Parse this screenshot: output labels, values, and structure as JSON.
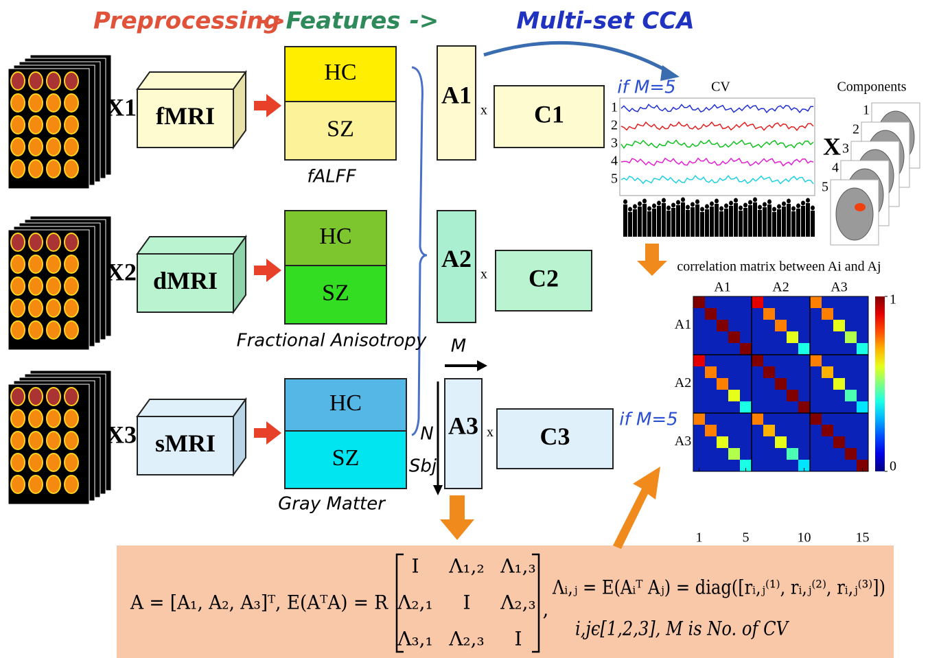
{
  "header": {
    "steps": [
      "Preprocessing",
      "Features",
      "Multi-set CCA"
    ],
    "arrows": [
      "->",
      "->"
    ]
  },
  "modalities": [
    {
      "input": "X1",
      "name": "fMRI",
      "groups": [
        "HC",
        "SZ"
      ],
      "caption": "fALFF",
      "loading": "A1",
      "times": "x",
      "component": "C1"
    },
    {
      "input": "X2",
      "name": "dMRI",
      "groups": [
        "HC",
        "SZ"
      ],
      "caption": "Fractional Anisotropy",
      "loading": "A2",
      "times": "x",
      "component": "C2"
    },
    {
      "input": "X3",
      "name": "sMRI",
      "groups": [
        "HC",
        "SZ"
      ],
      "caption": "Gray Matter",
      "loading": "A3",
      "times": "x",
      "component": "C3"
    }
  ],
  "loading_axes": {
    "columns": "M",
    "rows": [
      "N",
      "Sbj"
    ]
  },
  "cv_panel": {
    "condition": "if M=5",
    "title": "CV",
    "series_labels": [
      "1",
      "2",
      "3",
      "4",
      "5"
    ],
    "times": "X",
    "components_title": "Components",
    "component_labels": [
      "1",
      "2",
      "3",
      "4",
      "5"
    ]
  },
  "correlation_matrix": {
    "title": "correlation matrix between Ai and Aj",
    "condition": "if M=5",
    "column_labels": [
      "A1",
      "A2",
      "A3"
    ],
    "row_labels": [
      "A1",
      "A2",
      "A3"
    ],
    "xticks": [
      1,
      5,
      10,
      15
    ],
    "colorbar_ticks": [
      0,
      1
    ],
    "block_diagonals": [
      {
        "block": [
          0,
          0
        ],
        "values": [
          1,
          1,
          1,
          1,
          1
        ]
      },
      {
        "block": [
          1,
          1
        ],
        "values": [
          1,
          1,
          1,
          1,
          1
        ]
      },
      {
        "block": [
          2,
          2
        ],
        "values": [
          1,
          1,
          1,
          1,
          1
        ]
      },
      {
        "block": [
          0,
          1
        ],
        "values": [
          0.9,
          0.75,
          0.75,
          0.6,
          0.4
        ]
      },
      {
        "block": [
          0,
          2
        ],
        "values": [
          0.75,
          0.75,
          0.6,
          0.55,
          0.4
        ]
      },
      {
        "block": [
          1,
          2
        ],
        "values": [
          0.75,
          0.7,
          0.6,
          0.45,
          0.35
        ]
      }
    ]
  },
  "formula": {
    "definition": "A = [A₁, A₂, A₃]ᵀ, E(AᵀA) = R",
    "matrix": [
      [
        "I",
        "Λ₁,₂",
        "Λ₁,₃"
      ],
      [
        "Λ₂,₁",
        "I",
        "Λ₂,₃"
      ],
      [
        "Λ₃,₁",
        "Λ₂,₃",
        "I"
      ]
    ],
    "separator": ",",
    "block": "Λᵢ,ⱼ = E(Aᵢᵀ Aⱼ) = diag([rᵢ,ⱼ⁽¹⁾, rᵢ,ⱼ⁽²⁾, rᵢ,ⱼ⁽³⁾])",
    "note": "i,jϵ[1,2,3], M is No. of CV"
  }
}
